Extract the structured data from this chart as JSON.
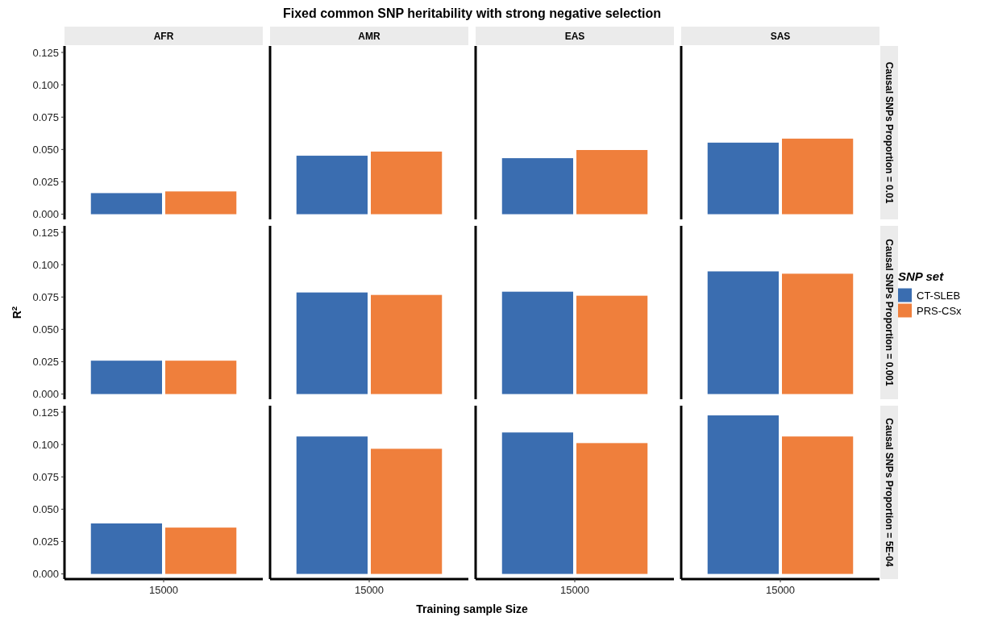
{
  "chart_data": [
    {
      "type": "bar",
      "title": "Fixed common SNP heritability with strong negative selection",
      "y2label": "Causal SNPs Proportion = 0.01",
      "categories": [
        "AFR",
        "AMR",
        "EAS",
        "SAS"
      ],
      "series": [
        {
          "color": "#3a6db0",
          "values": [
            0.0163,
            0.0452,
            0.0433,
            0.0553
          ]
        },
        {
          "color": "#ef7f3c",
          "values": [
            0.0176,
            0.0484,
            0.0496,
            0.0584
          ]
        }
      ],
      "ylim": [
        -0.004,
        0.13
      ],
      "yticks": [
        {
          "value": 0,
          "label": "0.000"
        },
        {
          "value": 0.025,
          "label": "0.025"
        },
        {
          "value": 0.05,
          "label": "0.050"
        },
        {
          "value": 0.075,
          "label": "0.075"
        },
        {
          "value": 0.1,
          "label": "0.100"
        },
        {
          "value": 0.125,
          "label": "0.125"
        }
      ]
    },
    {
      "type": "bar",
      "ylabel": "R$^{2}$",
      "y2label": "Causal SNPs Proportion = 0.001",
      "legend": "right",
      "legend_title": "SNP set",
      "categories": [
        null,
        null,
        null,
        null
      ],
      "series": [
        {
          "name": "CT-SLEB",
          "color": "#3a6db0",
          "values": [
            0.0258,
            0.0785,
            0.0791,
            0.0948
          ]
        },
        {
          "name": "PRS-CSx",
          "color": "#ef7f3c",
          "values": [
            0.0258,
            0.0766,
            0.076,
            0.093
          ]
        }
      ],
      "ylim": [
        -0.004,
        0.13
      ],
      "yticks": [
        {
          "value": 0,
          "label": "0.000"
        },
        {
          "value": 0.025,
          "label": "0.025"
        },
        {
          "value": 0.05,
          "label": "0.050"
        },
        {
          "value": 0.075,
          "label": "0.075"
        },
        {
          "value": 0.1,
          "label": "0.100"
        },
        {
          "value": 0.125,
          "label": "0.125"
        }
      ],
      "tick_labels": "y"
    },
    {
      "type": "bar",
      "xlabel": "Training sample Size",
      "y2label": "Causal SNPs Proportion = 5E-04",
      "categories": [
        null,
        null,
        null,
        null
      ],
      "series": [
        {
          "color": "#3a6db0",
          "values": [
            0.039,
            0.1062,
            0.1093,
            0.1225
          ]
        },
        {
          "color": "#ef7f3c",
          "values": [
            0.0358,
            0.0967,
            0.1011,
            0.1062
          ]
        }
      ],
      "ylim": [
        -0.004,
        0.13
      ],
      "yticks": [
        {
          "value": 0,
          "label": "0.000"
        },
        {
          "value": 0.025,
          "label": "0.025"
        },
        {
          "value": 0.05,
          "label": "0.050"
        },
        {
          "value": 0.075,
          "label": "0.075"
        },
        {
          "value": 0.1,
          "label": "0.100"
        },
        {
          "value": 0.125,
          "label": "0.125"
        }
      ],
      "tick_labels": "y",
      "annotations": [
        "15000",
        "15000",
        "15000",
        "15000"
      ]
    }
  ]
}
